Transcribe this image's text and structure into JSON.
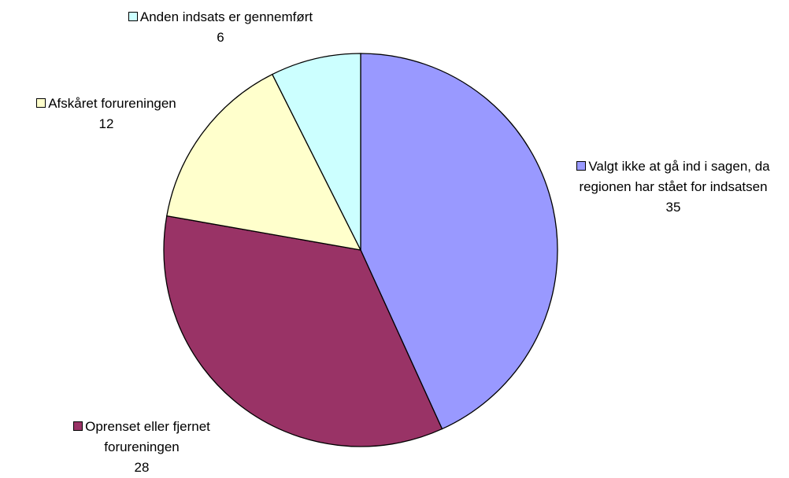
{
  "chart_data": {
    "type": "pie",
    "categories": [
      "Valgt ikke at gå ind i sagen, da regionen har stået for indsatsen",
      "Oprenset eller fjernet forureningen",
      "Afskåret forureningen",
      "Anden indsats er gennemført"
    ],
    "values": [
      35,
      28,
      12,
      6
    ],
    "colors": [
      "#9999ff",
      "#993366",
      "#ffffcc",
      "#ccffff"
    ]
  }
}
